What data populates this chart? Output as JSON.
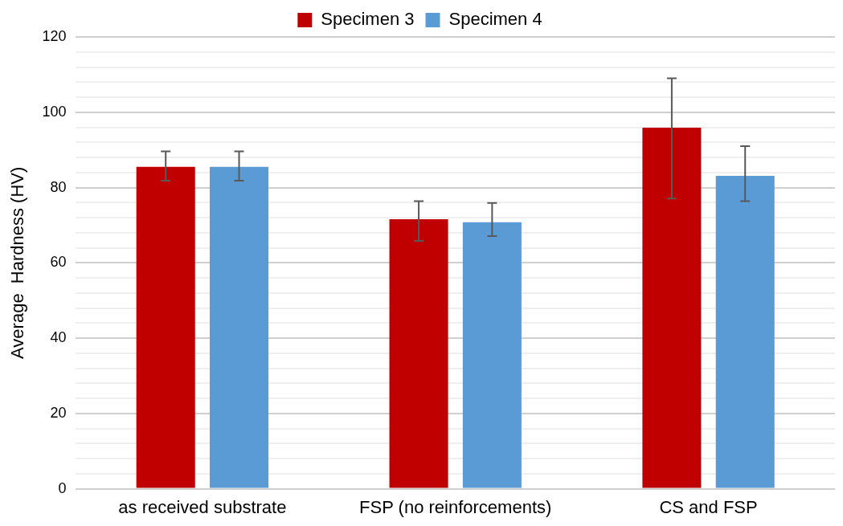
{
  "chart_data": {
    "type": "bar",
    "ylabel": "Average  Hardness (HV)",
    "categories": [
      "as received substrate",
      "FSP (no reinforcements)",
      "CS and FSP"
    ],
    "series": [
      {
        "name": "Specimen 3",
        "color": "#c00000",
        "values": [
          85.5,
          71.6,
          95.9
        ],
        "errors": [
          [
            81.8,
            89.6
          ],
          [
            65.8,
            76.4
          ],
          [
            77.1,
            109.0
          ]
        ]
      },
      {
        "name": "Specimen 4",
        "color": "#5b9bd5",
        "values": [
          85.5,
          70.8,
          83.1
        ],
        "errors": [
          [
            81.8,
            89.6
          ],
          [
            67.1,
            75.9
          ],
          [
            76.4,
            91.0
          ]
        ]
      }
    ],
    "ylim": [
      0,
      120
    ],
    "yticks": [
      0,
      {
        "value": 4,
        "label": null
      },
      {
        "value": 8,
        "label": null
      },
      {
        "value": 12,
        "label": null
      },
      {
        "value": 16,
        "label": null
      },
      20,
      {
        "value": 24,
        "label": null
      },
      {
        "value": 28,
        "label": null
      },
      {
        "value": 32,
        "label": null
      },
      {
        "value": 36,
        "label": null
      },
      40,
      {
        "value": 44,
        "label": null
      },
      {
        "value": 48,
        "label": null
      },
      {
        "value": 52,
        "label": null
      },
      {
        "value": 56,
        "label": null
      },
      60,
      {
        "value": 64,
        "label": null
      },
      {
        "value": 68,
        "label": null
      },
      {
        "value": 72,
        "label": null
      },
      {
        "value": 76,
        "label": null
      },
      80,
      {
        "value": 84,
        "label": null
      },
      {
        "value": 88,
        "label": null
      },
      {
        "value": 92,
        "label": null
      },
      {
        "value": 96,
        "label": null
      },
      100,
      {
        "value": 104,
        "label": null
      },
      {
        "value": 108,
        "label": null
      },
      {
        "value": 112,
        "label": null
      },
      {
        "value": 116,
        "label": null
      },
      120
    ],
    "grid": "y",
    "legend": "top"
  }
}
